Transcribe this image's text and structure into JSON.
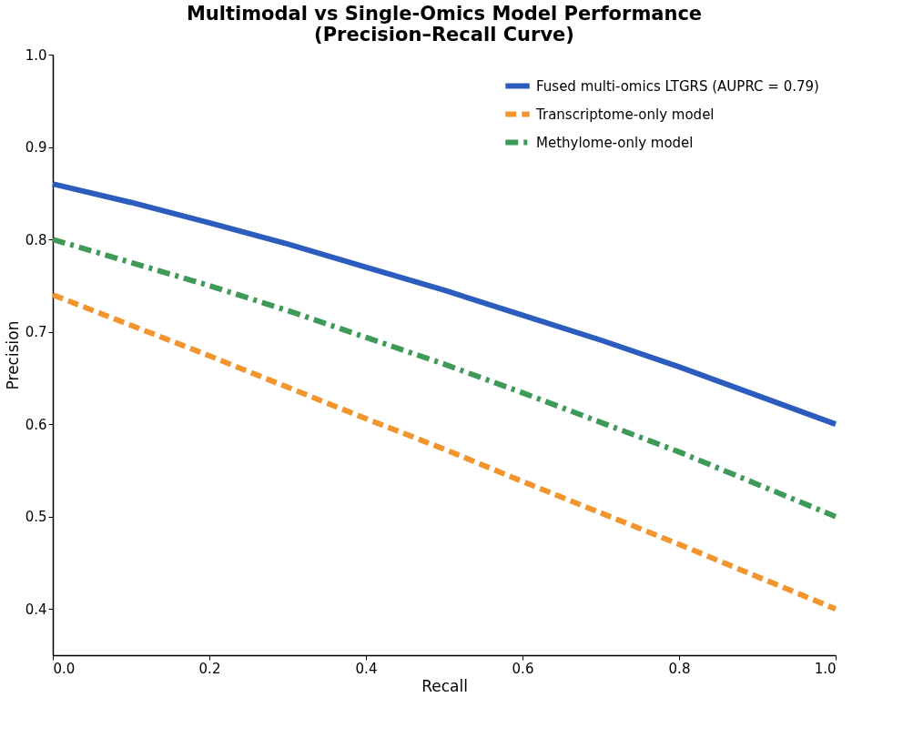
{
  "chart_data": {
    "type": "line",
    "title": "Multimodal vs Single-Omics Model Performance\n(Precision–Recall Curve)",
    "xlabel": "Recall",
    "ylabel": "Precision",
    "x": [
      0,
      0.1,
      0.2,
      0.3,
      0.4,
      0.5,
      0.6,
      0.7,
      0.8,
      0.9,
      1.0
    ],
    "series": [
      {
        "name": "Fused multi-omics LTGRS (AUPRC = 0.79)",
        "color": "#2b5cbe",
        "line_style": "solid",
        "values": [
          0.86,
          0.84,
          0.818,
          0.795,
          0.77,
          0.745,
          0.718,
          0.691,
          0.662,
          0.631,
          0.6
        ]
      },
      {
        "name": "Transcriptome-only model",
        "color": "#f2952f",
        "line_style": "dashed",
        "values": [
          0.74,
          0.707,
          0.674,
          0.64,
          0.606,
          0.573,
          0.538,
          0.504,
          0.47,
          0.435,
          0.4
        ]
      },
      {
        "name": "Methylome-only model",
        "color": "#3f9a58",
        "line_style": "dashdot",
        "values": [
          0.8,
          0.775,
          0.75,
          0.723,
          0.694,
          0.665,
          0.634,
          0.602,
          0.57,
          0.535,
          0.5
        ]
      }
    ],
    "xlim": [
      0,
      1.0
    ],
    "xticks": [
      {
        "value": 0,
        "label": "0.0"
      },
      0.2,
      0.4,
      0.6,
      0.8,
      {
        "value": 1.0,
        "label": "1.0"
      }
    ],
    "ylim": [
      0.35,
      1.0
    ],
    "yticks": [
      0.4,
      0.5,
      0.6,
      0.7,
      0.8,
      0.9,
      {
        "value": 1.0,
        "label": "1.0"
      }
    ],
    "grid": false,
    "legend": "top right",
    "marker": "none"
  }
}
